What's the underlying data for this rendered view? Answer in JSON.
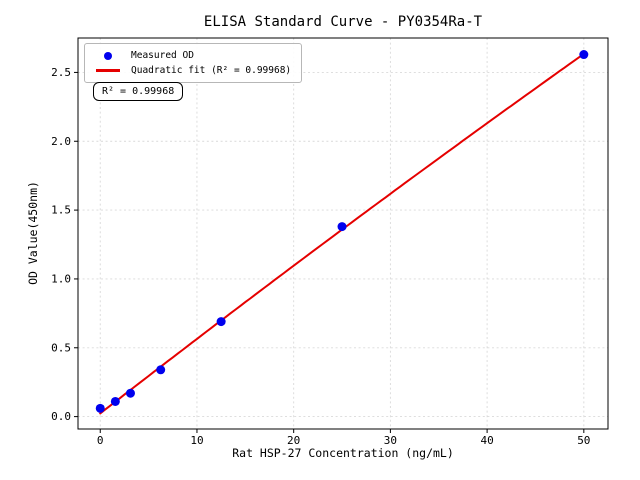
{
  "title": "ELISA Standard Curve - PY0354Ra-T",
  "axes": {
    "x_label": "Rat HSP-27 Concentration (ng/mL)",
    "y_label": "OD Value(450nm)"
  },
  "legend": {
    "items": [
      {
        "marker": "dot",
        "label": "Measured OD"
      },
      {
        "marker": "line",
        "label": "Quadratic fit (R² = 0.99968)"
      }
    ]
  },
  "annotation": {
    "text": "R² = 0.99968"
  },
  "colors": {
    "measured": "#0000ee",
    "fit": "#e50000",
    "grid": "#d9d9d9",
    "axis": "#000000"
  },
  "chart_data": {
    "type": "scatter",
    "title": "ELISA Standard Curve - PY0354Ra-T",
    "xlabel": "Rat HSP-27 Concentration (ng/mL)",
    "ylabel": "OD Value(450nm)",
    "series": [
      {
        "name": "Measured OD",
        "type": "scatter",
        "color": "#0000ee",
        "x": [
          0,
          1.5625,
          3.125,
          6.25,
          12.5,
          25,
          50
        ],
        "y": [
          0.06,
          0.11,
          0.17,
          0.34,
          0.69,
          1.38,
          2.63
        ]
      },
      {
        "name": "Quadratic fit (R² = 0.99968)",
        "type": "line",
        "color": "#e50000",
        "fit": "quadratic",
        "fit_of_series": "Measured OD",
        "r_squared": 0.99968,
        "x_range": [
          0,
          50
        ]
      }
    ],
    "xtick_values": [
      0,
      10,
      20,
      30,
      40,
      50
    ],
    "xtick_labels": [
      "0",
      "10",
      "20",
      "30",
      "40",
      "50"
    ],
    "ytick_values": [
      0.0,
      0.5,
      1.0,
      1.5,
      2.0,
      2.5
    ],
    "ytick_labels": [
      "0.0",
      "0.5",
      "1.0",
      "1.5",
      "2.0",
      "2.5"
    ],
    "xlim": [
      -2.3,
      52.5
    ],
    "ylim": [
      -0.09,
      2.75
    ],
    "grid": true,
    "grid_style": "dashed",
    "legend_position": "upper left"
  }
}
